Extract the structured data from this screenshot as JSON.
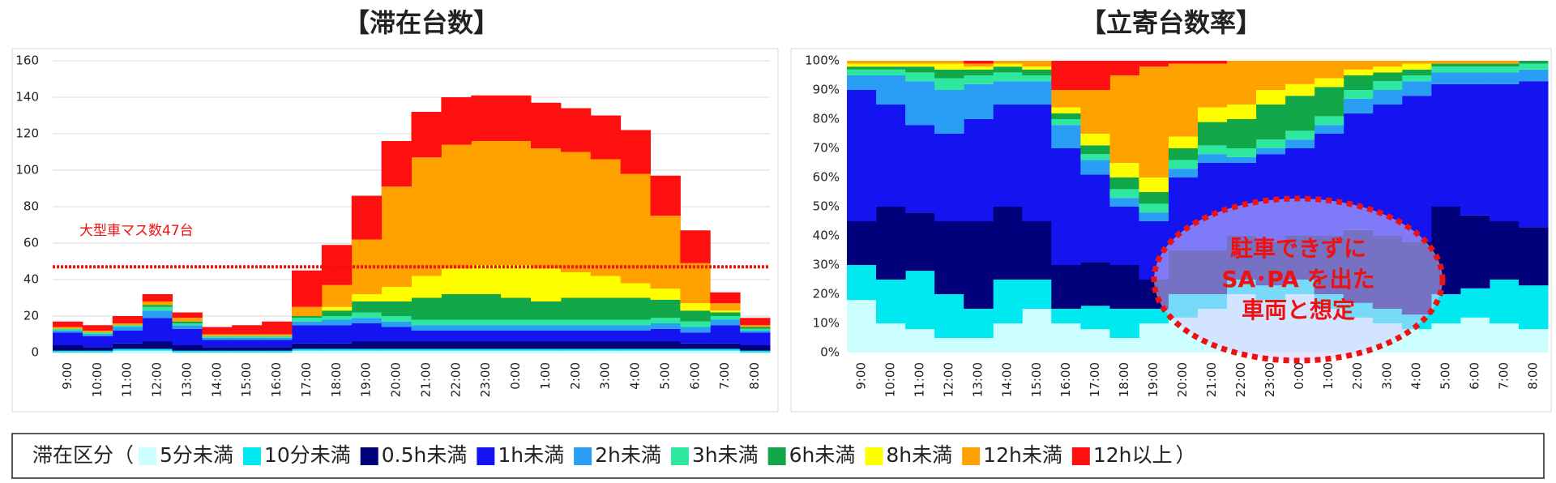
{
  "chart_data": [
    {
      "type": "stacked_bar",
      "title": "【滞在台数】",
      "categories": [
        "9:00",
        "10:00",
        "11:00",
        "12:00",
        "13:00",
        "14:00",
        "15:00",
        "16:00",
        "17:00",
        "18:00",
        "19:00",
        "20:00",
        "21:00",
        "22:00",
        "23:00",
        "0:00",
        "1:00",
        "2:00",
        "3:00",
        "4:00",
        "5:00",
        "6:00",
        "7:00",
        "8:00"
      ],
      "ylim": [
        0,
        160
      ],
      "yticks": [
        0,
        20,
        40,
        60,
        80,
        100,
        120,
        140,
        160
      ],
      "grid": true,
      "ref_line": 47,
      "ref_line_color": "#ee1111",
      "annotation": "大型車マス数47台",
      "legend_title": "滞在区分（",
      "legend_close": "）",
      "series": [
        {
          "name": "5分未満",
          "color": "#ccffff",
          "values": [
            0,
            0,
            1,
            1,
            0,
            0,
            0,
            0,
            1,
            1,
            1,
            1,
            1,
            1,
            1,
            1,
            1,
            1,
            1,
            1,
            1,
            1,
            1,
            0
          ]
        },
        {
          "name": "10分未満",
          "color": "#00e8f0",
          "values": [
            1,
            1,
            1,
            1,
            1,
            1,
            1,
            1,
            1,
            1,
            1,
            1,
            1,
            1,
            1,
            1,
            1,
            1,
            1,
            1,
            1,
            1,
            1,
            1
          ]
        },
        {
          "name": "0.5h未満",
          "color": "#00007a",
          "values": [
            3,
            2,
            3,
            4,
            3,
            2,
            2,
            2,
            3,
            3,
            4,
            4,
            4,
            4,
            4,
            4,
            4,
            4,
            4,
            4,
            4,
            3,
            3,
            3
          ]
        },
        {
          "name": "1h未満",
          "color": "#1414f0",
          "values": [
            7,
            6,
            7,
            13,
            9,
            4,
            4,
            4,
            10,
            10,
            10,
            8,
            6,
            6,
            6,
            6,
            6,
            6,
            6,
            6,
            7,
            6,
            10,
            7
          ]
        },
        {
          "name": "2h未満",
          "color": "#2a9df4",
          "values": [
            1,
            1,
            2,
            4,
            2,
            1,
            1,
            1,
            2,
            3,
            3,
            3,
            3,
            3,
            3,
            3,
            3,
            3,
            3,
            3,
            3,
            3,
            3,
            1
          ]
        },
        {
          "name": "3h未満",
          "color": "#2ee8a0",
          "values": [
            1,
            1,
            1,
            2,
            1,
            1,
            1,
            1,
            2,
            2,
            3,
            3,
            3,
            3,
            3,
            3,
            3,
            3,
            3,
            3,
            3,
            3,
            2,
            1
          ]
        },
        {
          "name": "6h未満",
          "color": "#12a84a",
          "values": [
            0,
            0,
            0,
            1,
            1,
            0,
            0,
            0,
            1,
            3,
            6,
            8,
            12,
            14,
            14,
            12,
            10,
            12,
            12,
            12,
            10,
            6,
            2,
            1
          ]
        },
        {
          "name": "8h未満",
          "color": "#ffff00",
          "values": [
            0,
            0,
            0,
            0,
            0,
            0,
            0,
            0,
            0,
            2,
            4,
            8,
            12,
            14,
            16,
            18,
            18,
            14,
            12,
            8,
            6,
            4,
            1,
            0
          ]
        },
        {
          "name": "12h未満",
          "color": "#ffa200",
          "values": [
            1,
            1,
            1,
            2,
            2,
            1,
            1,
            1,
            5,
            12,
            30,
            55,
            65,
            68,
            68,
            68,
            66,
            66,
            64,
            60,
            40,
            22,
            4,
            1
          ]
        },
        {
          "name": "12h以上",
          "color": "#ff1010",
          "values": [
            3,
            3,
            4,
            4,
            3,
            4,
            5,
            7,
            20,
            22,
            24,
            25,
            25,
            26,
            25,
            25,
            25,
            24,
            24,
            24,
            22,
            18,
            6,
            4
          ]
        }
      ]
    },
    {
      "type": "stacked_bar",
      "title": "【立寄台数率】",
      "categories": [
        "9:00",
        "10:00",
        "11:00",
        "12:00",
        "13:00",
        "14:00",
        "15:00",
        "16:00",
        "17:00",
        "18:00",
        "19:00",
        "20:00",
        "21:00",
        "22:00",
        "23:00",
        "0:00",
        "1:00",
        "2:00",
        "3:00",
        "4:00",
        "5:00",
        "6:00",
        "7:00",
        "8:00"
      ],
      "ylim": [
        0,
        100
      ],
      "yticks": [
        {
          "value": 0,
          "label": "0%"
        },
        {
          "value": 10,
          "label": "10%"
        },
        {
          "value": 20,
          "label": "20%"
        },
        {
          "value": 30,
          "label": "30%"
        },
        {
          "value": 40,
          "label": "40%"
        },
        {
          "value": 50,
          "label": "50%"
        },
        {
          "value": 60,
          "label": "60%"
        },
        {
          "value": 70,
          "label": "70%"
        },
        {
          "value": 80,
          "label": "80%"
        },
        {
          "value": 90,
          "label": "90%"
        },
        {
          "value": 100,
          "label": "100%"
        }
      ],
      "grid": false,
      "annotation": [
        "駐車できずに",
        "SA･PA を出た",
        "車両と想定"
      ],
      "series": [
        {
          "color": "#ccffff",
          "values": [
            18,
            10,
            8,
            5,
            5,
            10,
            15,
            10,
            8,
            5,
            10,
            12,
            15,
            20,
            18,
            20,
            15,
            12,
            10,
            8,
            10,
            12,
            10,
            8
          ]
        },
        {
          "color": "#00e8f0",
          "values": [
            12,
            15,
            20,
            15,
            10,
            15,
            10,
            5,
            8,
            10,
            5,
            8,
            5,
            5,
            5,
            5,
            5,
            5,
            5,
            5,
            10,
            10,
            15,
            15
          ]
        },
        {
          "color": "#00007a",
          "values": [
            15,
            25,
            20,
            25,
            30,
            25,
            20,
            15,
            15,
            15,
            10,
            15,
            15,
            15,
            15,
            15,
            20,
            25,
            25,
            25,
            30,
            25,
            20,
            20
          ]
        },
        {
          "color": "#1414f0",
          "values": [
            45,
            35,
            30,
            30,
            35,
            35,
            40,
            40,
            30,
            20,
            20,
            25,
            30,
            25,
            30,
            30,
            35,
            40,
            45,
            50,
            42,
            45,
            47,
            50
          ]
        },
        {
          "color": "#2a9df4",
          "values": [
            5,
            10,
            15,
            15,
            12,
            8,
            8,
            8,
            5,
            3,
            3,
            3,
            3,
            2,
            2,
            3,
            3,
            5,
            5,
            5,
            4,
            4,
            4,
            4
          ]
        },
        {
          "color": "#2ee8a0",
          "values": [
            2,
            2,
            3,
            4,
            3,
            3,
            2,
            2,
            2,
            3,
            3,
            3,
            3,
            3,
            3,
            3,
            3,
            3,
            3,
            2,
            2,
            2,
            2,
            2
          ]
        },
        {
          "color": "#12a84a",
          "values": [
            1,
            1,
            2,
            3,
            2,
            2,
            2,
            2,
            3,
            4,
            4,
            4,
            8,
            10,
            12,
            12,
            10,
            5,
            3,
            2,
            1,
            1,
            1,
            1
          ]
        },
        {
          "color": "#ffff00",
          "values": [
            1,
            1,
            1,
            2,
            1,
            1,
            1,
            2,
            4,
            5,
            5,
            4,
            5,
            5,
            5,
            4,
            3,
            2,
            2,
            2,
            0,
            0,
            0,
            0
          ]
        },
        {
          "color": "#ffa200",
          "values": [
            1,
            1,
            1,
            1,
            1,
            1,
            2,
            6,
            15,
            30,
            38,
            25,
            15,
            15,
            10,
            8,
            6,
            3,
            2,
            1,
            1,
            1,
            1,
            0
          ]
        },
        {
          "color": "#ff1010",
          "values": [
            0,
            0,
            0,
            0,
            1,
            0,
            0,
            10,
            10,
            5,
            2,
            1,
            1,
            0,
            0,
            0,
            0,
            0,
            0,
            0,
            0,
            0,
            0,
            0
          ]
        }
      ]
    }
  ]
}
